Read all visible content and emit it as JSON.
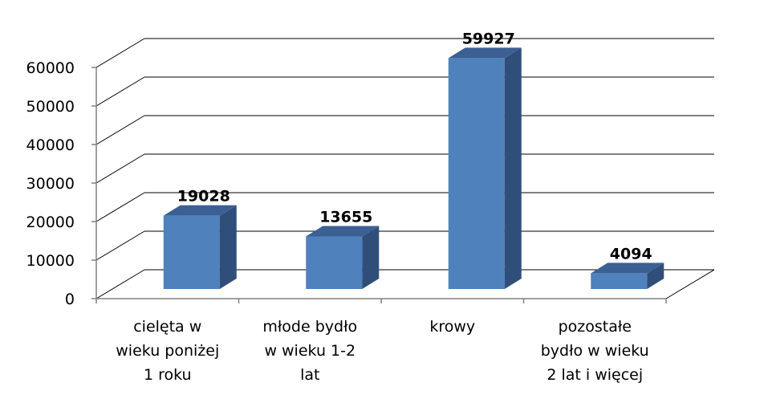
{
  "chart_data": {
    "type": "bar",
    "title": "",
    "xlabel": "",
    "ylabel": "",
    "categories": [
      [
        "cielęta w",
        "wieku poniżej",
        "1 roku"
      ],
      [
        "młode bydło",
        "w wieku 1-2",
        "lat"
      ],
      [
        "krowy"
      ],
      [
        "pozostałe",
        "bydło w wieku",
        "2 lat i więcej"
      ]
    ],
    "values": [
      19028,
      13655,
      59927,
      4094
    ],
    "data_labels": [
      "19028",
      "13655",
      "59927",
      "4094"
    ],
    "yticks": [
      "0",
      "10000",
      "20000",
      "30000",
      "40000",
      "50000",
      "60000"
    ],
    "ylim": [
      0,
      60000
    ],
    "grid": true,
    "legend": "none",
    "style": "3d-column"
  },
  "colors": {
    "bar_front": "#4f81bd",
    "bar_side": "#2f4f7a",
    "bar_top": "#3c5f94",
    "grid": "#000000",
    "axis": "#808080"
  }
}
